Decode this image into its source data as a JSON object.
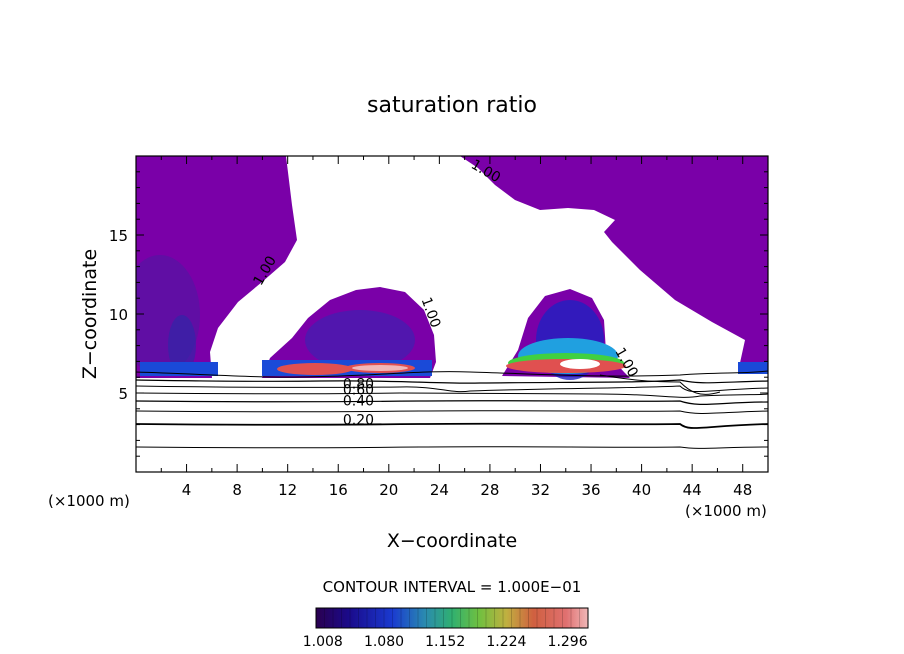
{
  "chart_data": {
    "type": "heatmap",
    "title": "saturation ratio",
    "xlabel": "X−coordinate",
    "ylabel": "Z−coordinate",
    "x_unit_left": "(×1000 m)",
    "x_unit_right": "(×1000 m)",
    "xlim": [
      0,
      50
    ],
    "ylim": [
      0,
      20
    ],
    "xticks": [
      4,
      8,
      12,
      16,
      20,
      24,
      28,
      32,
      36,
      40,
      44,
      48
    ],
    "yticks": [
      5,
      10,
      15
    ],
    "contour_interval_text": "CONTOUR INTERVAL = 1.000E−01",
    "colorbar": {
      "range": [
        1.0,
        1.32
      ],
      "tick_values": [
        1.008,
        1.08,
        1.152,
        1.224,
        1.296
      ],
      "tick_labels": [
        "1.008",
        "1.080",
        "1.152",
        "1.224",
        "1.296"
      ]
    },
    "contour_labels": [
      {
        "text": "1.00",
        "x": 10.5,
        "z": 12.6,
        "angle": -60
      },
      {
        "text": "1.00",
        "x": 23.0,
        "z": 10.0,
        "angle": 70
      },
      {
        "text": "1.00",
        "x": 27.5,
        "z": 18.8,
        "angle": 30
      },
      {
        "text": "1.00",
        "x": 38.5,
        "z": 6.8,
        "angle": 60
      },
      {
        "text": "0.80",
        "x": 17.6,
        "z": 5.3,
        "angle": 0
      },
      {
        "text": "0.60",
        "x": 17.6,
        "z": 4.9,
        "angle": 0
      },
      {
        "text": "0.40",
        "x": 17.6,
        "z": 4.2,
        "angle": 0
      },
      {
        "text": "0.20",
        "x": 17.6,
        "z": 3.0,
        "angle": 0
      }
    ]
  }
}
